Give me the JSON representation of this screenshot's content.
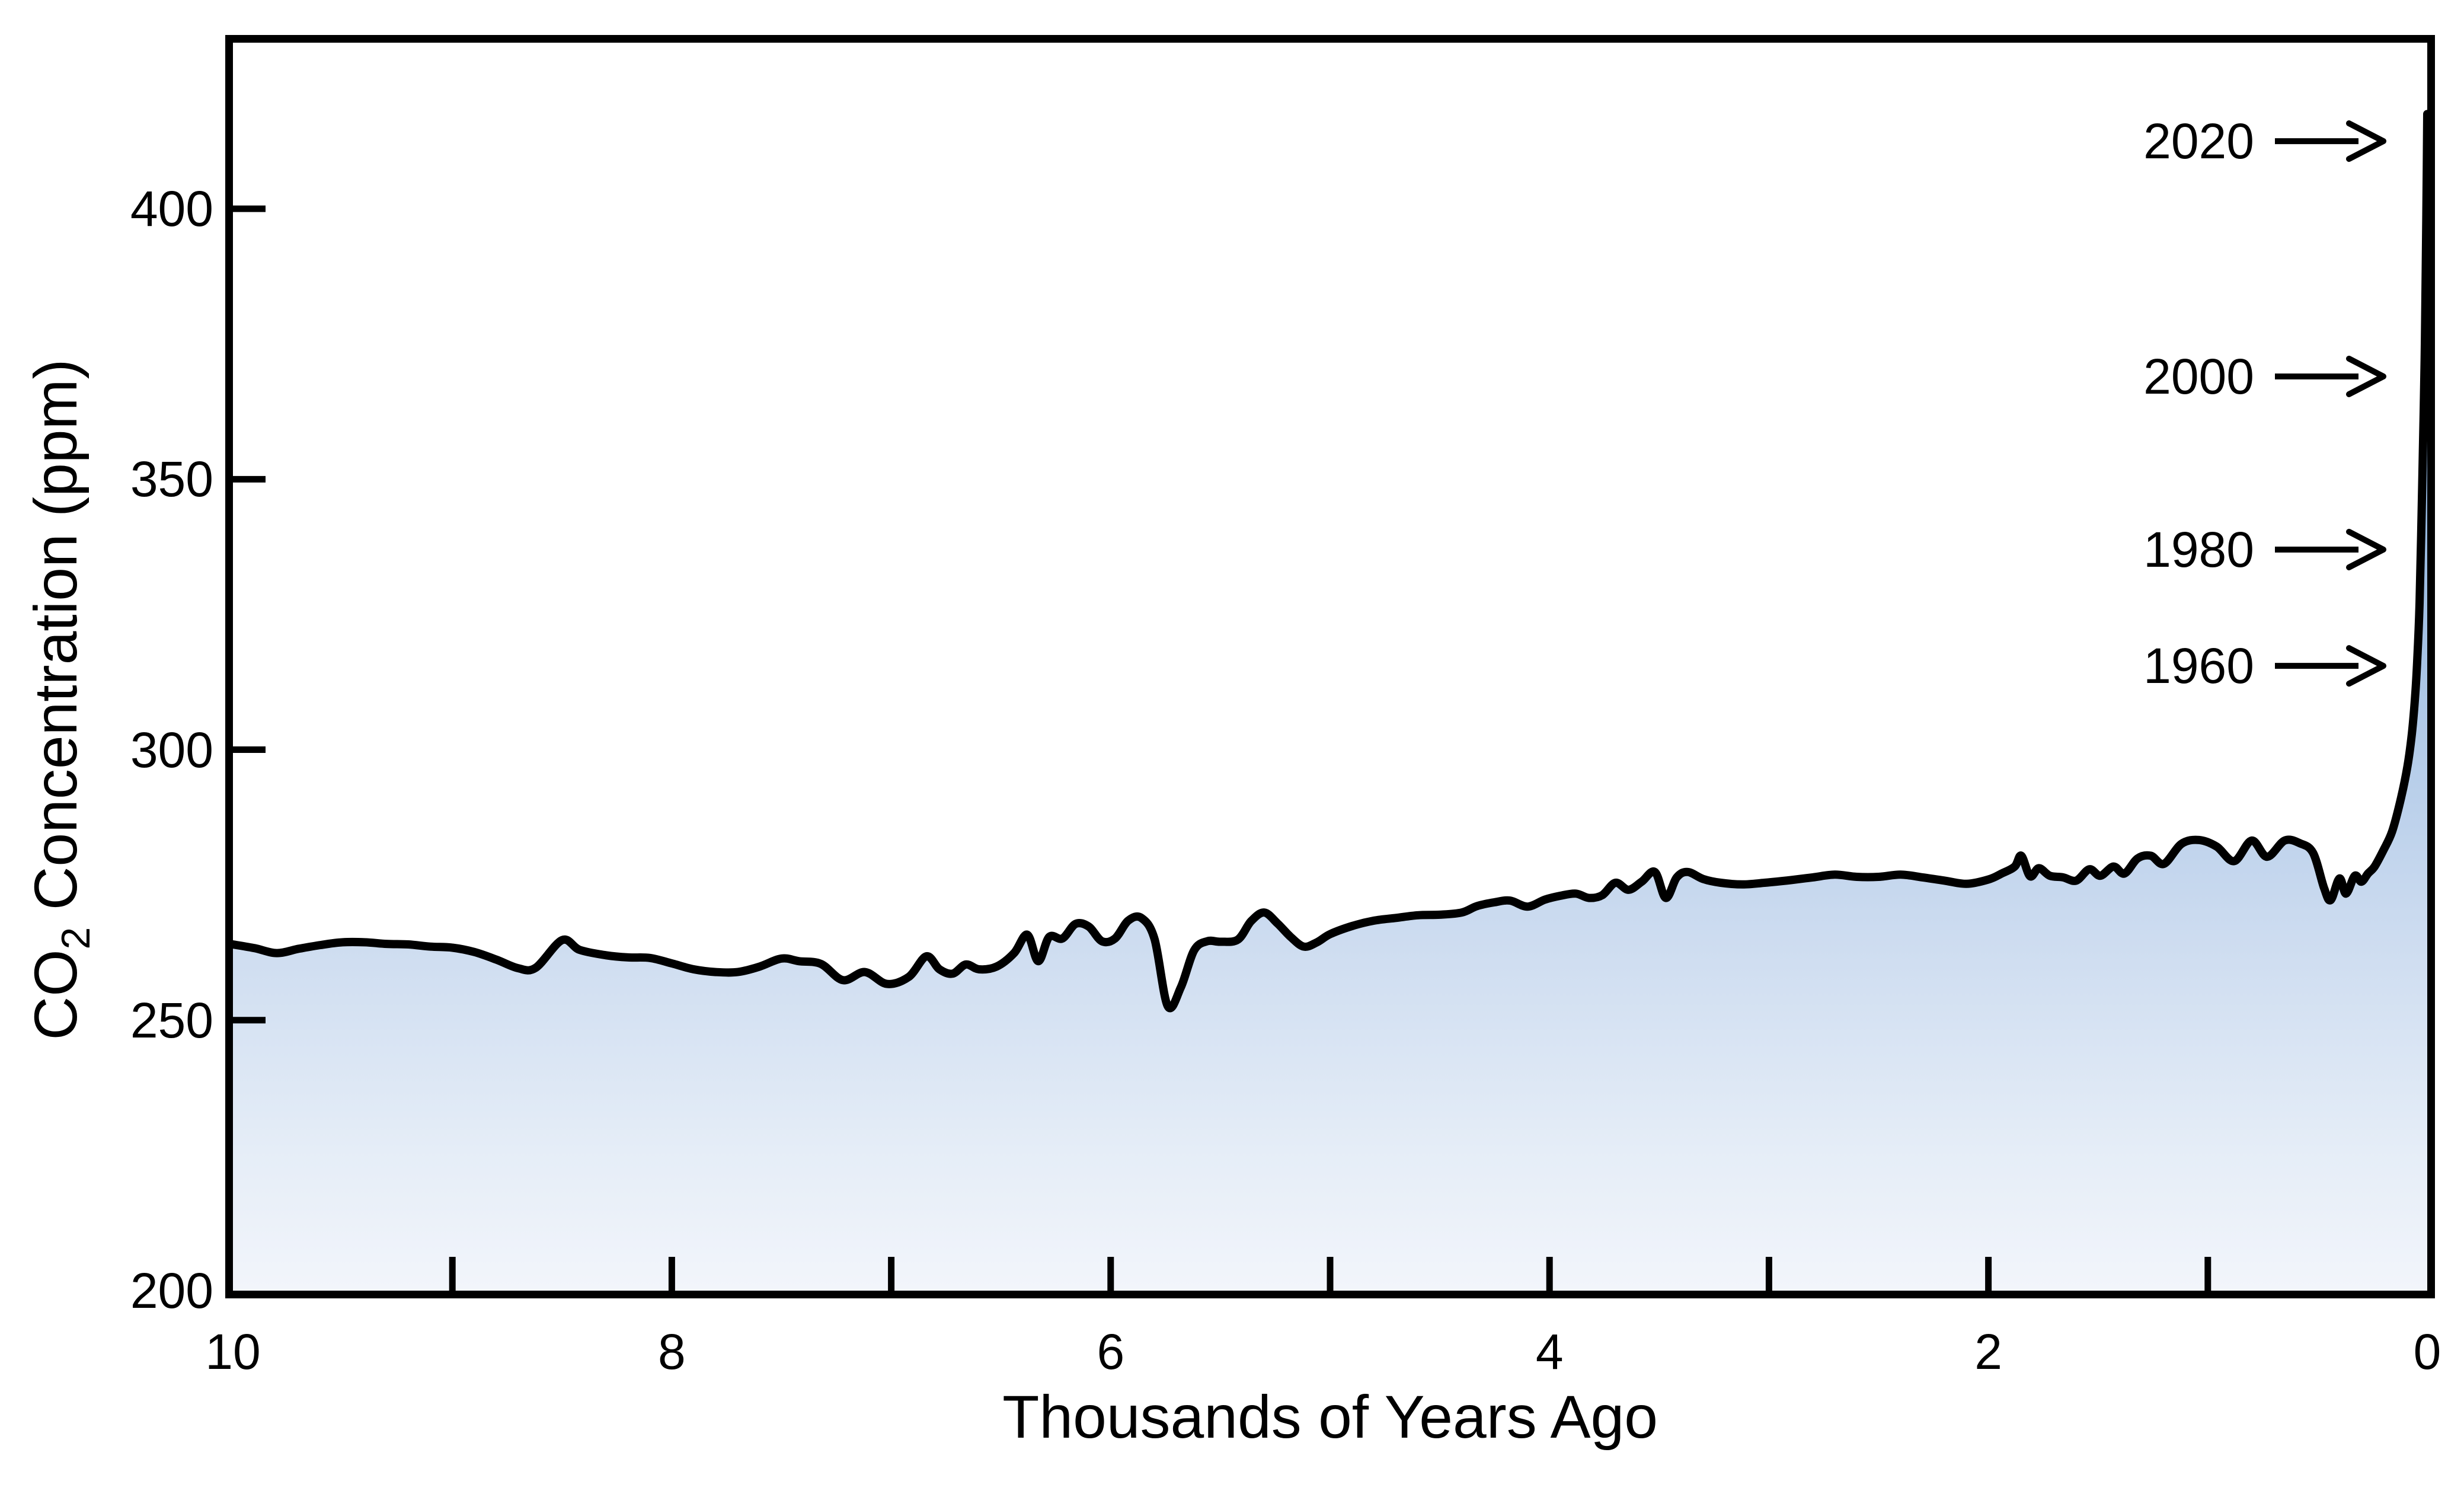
{
  "chart_data": {
    "type": "area",
    "title": "",
    "xlabel": "Thousands of Years Ago",
    "ylabel": "CO2 Concentration (ppm)",
    "ylabel_parts": {
      "pre": "CO",
      "sub": "2",
      "post": " Concentration (ppm)"
    },
    "xlim": [
      10,
      0
    ],
    "ylim": [
      200,
      430.7
    ],
    "x_axis_reversed": true,
    "grid": false,
    "legend": "none",
    "x_major_ticks": [
      {
        "value": 10,
        "label": "10"
      },
      {
        "value": 8,
        "label": "8"
      },
      {
        "value": 6,
        "label": "6"
      },
      {
        "value": 4,
        "label": "4"
      },
      {
        "value": 2,
        "label": "2"
      },
      {
        "value": 0,
        "label": "0"
      }
    ],
    "x_minor_ticks": [
      9,
      7,
      5,
      3,
      1
    ],
    "y_ticks": [
      {
        "value": 400,
        "label": "400",
        "has_tick": true
      },
      {
        "value": 350,
        "label": "350",
        "has_tick": true
      },
      {
        "value": 300,
        "label": "300",
        "has_tick": true
      },
      {
        "value": 250,
        "label": "250",
        "has_tick": true
      },
      {
        "value": 200,
        "label": "200",
        "has_tick": false
      }
    ],
    "annotations": [
      {
        "label": "2020",
        "ppm": 412.5
      },
      {
        "label": "2000",
        "ppm": 369
      },
      {
        "label": "1980",
        "ppm": 337
      },
      {
        "label": "1960",
        "ppm": 315.5
      }
    ],
    "series_name": "CO2 concentration",
    "points": [
      [
        10.0,
        264.0
      ],
      [
        9.9,
        263.3
      ],
      [
        9.8,
        262.4
      ],
      [
        9.7,
        263.2
      ],
      [
        9.6,
        263.9
      ],
      [
        9.5,
        264.4
      ],
      [
        9.4,
        264.4
      ],
      [
        9.3,
        264.1
      ],
      [
        9.2,
        264.0
      ],
      [
        9.1,
        263.6
      ],
      [
        9.0,
        263.4
      ],
      [
        8.9,
        262.6
      ],
      [
        8.8,
        261.2
      ],
      [
        8.7,
        259.6
      ],
      [
        8.62,
        259.7
      ],
      [
        8.5,
        264.8
      ],
      [
        8.42,
        263.0
      ],
      [
        8.3,
        262.0
      ],
      [
        8.2,
        261.6
      ],
      [
        8.1,
        261.5
      ],
      [
        8.0,
        260.5
      ],
      [
        7.9,
        259.4
      ],
      [
        7.8,
        258.9
      ],
      [
        7.7,
        258.9
      ],
      [
        7.6,
        259.9
      ],
      [
        7.5,
        261.4
      ],
      [
        7.42,
        260.9
      ],
      [
        7.32,
        260.4
      ],
      [
        7.22,
        257.4
      ],
      [
        7.12,
        258.9
      ],
      [
        7.02,
        256.7
      ],
      [
        6.92,
        258.0
      ],
      [
        6.84,
        261.8
      ],
      [
        6.78,
        259.4
      ],
      [
        6.72,
        258.6
      ],
      [
        6.66,
        260.3
      ],
      [
        6.6,
        259.4
      ],
      [
        6.52,
        259.9
      ],
      [
        6.44,
        262.4
      ],
      [
        6.38,
        265.8
      ],
      [
        6.33,
        260.9
      ],
      [
        6.28,
        265.4
      ],
      [
        6.22,
        265.1
      ],
      [
        6.16,
        267.8
      ],
      [
        6.1,
        267.3
      ],
      [
        6.04,
        264.6
      ],
      [
        5.98,
        265.1
      ],
      [
        5.92,
        268.4
      ],
      [
        5.86,
        268.9
      ],
      [
        5.8,
        265.0
      ],
      [
        5.74,
        252.6
      ],
      [
        5.68,
        256.1
      ],
      [
        5.62,
        262.9
      ],
      [
        5.56,
        264.6
      ],
      [
        5.5,
        264.5
      ],
      [
        5.42,
        264.9
      ],
      [
        5.36,
        268.3
      ],
      [
        5.3,
        269.9
      ],
      [
        5.24,
        267.9
      ],
      [
        5.18,
        265.4
      ],
      [
        5.12,
        263.6
      ],
      [
        5.06,
        264.4
      ],
      [
        5.0,
        265.9
      ],
      [
        4.9,
        267.4
      ],
      [
        4.8,
        268.4
      ],
      [
        4.7,
        268.9
      ],
      [
        4.6,
        269.4
      ],
      [
        4.5,
        269.5
      ],
      [
        4.4,
        269.9
      ],
      [
        4.33,
        271.1
      ],
      [
        4.25,
        271.8
      ],
      [
        4.18,
        272.1
      ],
      [
        4.1,
        271.0
      ],
      [
        4.02,
        272.3
      ],
      [
        3.95,
        273.0
      ],
      [
        3.88,
        273.4
      ],
      [
        3.82,
        272.6
      ],
      [
        3.76,
        273.1
      ],
      [
        3.7,
        275.4
      ],
      [
        3.64,
        274.1
      ],
      [
        3.58,
        275.6
      ],
      [
        3.52,
        277.4
      ],
      [
        3.47,
        272.6
      ],
      [
        3.42,
        276.4
      ],
      [
        3.37,
        277.4
      ],
      [
        3.3,
        276.1
      ],
      [
        3.22,
        275.4
      ],
      [
        3.12,
        275.1
      ],
      [
        3.02,
        275.4
      ],
      [
        2.9,
        275.9
      ],
      [
        2.8,
        276.4
      ],
      [
        2.7,
        276.9
      ],
      [
        2.6,
        276.5
      ],
      [
        2.5,
        276.5
      ],
      [
        2.4,
        276.9
      ],
      [
        2.3,
        276.4
      ],
      [
        2.2,
        275.8
      ],
      [
        2.1,
        275.2
      ],
      [
        2.0,
        276.0
      ],
      [
        1.94,
        277.1
      ],
      [
        1.88,
        278.4
      ],
      [
        1.85,
        280.4
      ],
      [
        1.81,
        276.6
      ],
      [
        1.77,
        278.1
      ],
      [
        1.72,
        276.7
      ],
      [
        1.66,
        276.4
      ],
      [
        1.6,
        275.8
      ],
      [
        1.54,
        277.9
      ],
      [
        1.49,
        276.7
      ],
      [
        1.43,
        278.4
      ],
      [
        1.38,
        277.1
      ],
      [
        1.32,
        279.9
      ],
      [
        1.26,
        280.4
      ],
      [
        1.2,
        278.9
      ],
      [
        1.12,
        282.6
      ],
      [
        1.04,
        283.3
      ],
      [
        0.96,
        282.1
      ],
      [
        0.88,
        279.4
      ],
      [
        0.8,
        283.2
      ],
      [
        0.73,
        280.2
      ],
      [
        0.65,
        283.2
      ],
      [
        0.58,
        282.7
      ],
      [
        0.52,
        280.9
      ],
      [
        0.47,
        274.4
      ],
      [
        0.44,
        272.2
      ],
      [
        0.4,
        276.2
      ],
      [
        0.37,
        273.4
      ],
      [
        0.33,
        276.7
      ],
      [
        0.3,
        275.6
      ],
      [
        0.27,
        277.1
      ],
      [
        0.24,
        278.4
      ],
      [
        0.2,
        281.4
      ],
      [
        0.16,
        284.9
      ],
      [
        0.12,
        291.0
      ],
      [
        0.09,
        297.0
      ],
      [
        0.07,
        303.0
      ],
      [
        0.055,
        310.0
      ],
      [
        0.045,
        317.0
      ],
      [
        0.035,
        327.0
      ],
      [
        0.028,
        339.0
      ],
      [
        0.02,
        355.0
      ],
      [
        0.012,
        372.0
      ],
      [
        0.007,
        388.0
      ],
      [
        0.004,
        399.0
      ],
      [
        0.002,
        408.0
      ],
      [
        0.0,
        417.5
      ]
    ],
    "colors": {
      "line": "#000000",
      "frame": "#000000",
      "background": "#ffffff",
      "fill_gradient_top": "#4a87c4",
      "fill_gradient_stops": [
        {
          "offset": 0.0,
          "color": "#4a87c4"
        },
        {
          "offset": 0.1,
          "color": "#5b93cc"
        },
        {
          "offset": 0.3,
          "color": "#8db1dc"
        },
        {
          "offset": 0.5,
          "color": "#aec8e7"
        },
        {
          "offset": 0.7,
          "color": "#cddcf0"
        },
        {
          "offset": 0.88,
          "color": "#e5edf7"
        },
        {
          "offset": 1.0,
          "color": "#f2f5fb"
        }
      ]
    }
  }
}
